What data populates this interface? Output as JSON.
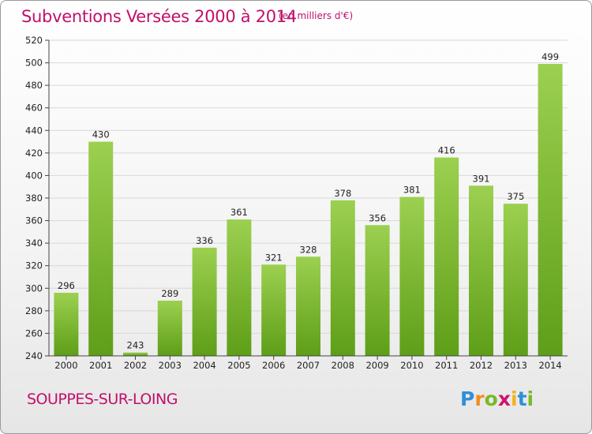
{
  "title": "Subventions Versées 2000 à 2014",
  "subtitle": "(en milliers d'€)",
  "location": "SOUPPES-SUR-LOING",
  "logo_text": "Proxiti",
  "colors": {
    "title": "#c0106a",
    "bar_top": "#9cd050",
    "bar_bottom": "#5e9e18",
    "axis": "#444444",
    "grid": "#d8d8d8"
  },
  "chart_data": {
    "type": "bar",
    "title": "Subventions Versées 2000 à 2014",
    "subtitle": "(en milliers d'€)",
    "xlabel": "",
    "ylabel": "",
    "ylim": [
      240,
      520
    ],
    "yticks": [
      240,
      260,
      280,
      300,
      320,
      340,
      360,
      380,
      400,
      420,
      440,
      460,
      480,
      500,
      520
    ],
    "grid": true,
    "legend": "none",
    "categories": [
      "2000",
      "2001",
      "2002",
      "2003",
      "2004",
      "2005",
      "2006",
      "2007",
      "2008",
      "2009",
      "2010",
      "2011",
      "2012",
      "2013",
      "2014"
    ],
    "values": [
      296,
      430,
      243,
      289,
      336,
      361,
      321,
      328,
      378,
      356,
      381,
      416,
      391,
      375,
      499
    ]
  }
}
